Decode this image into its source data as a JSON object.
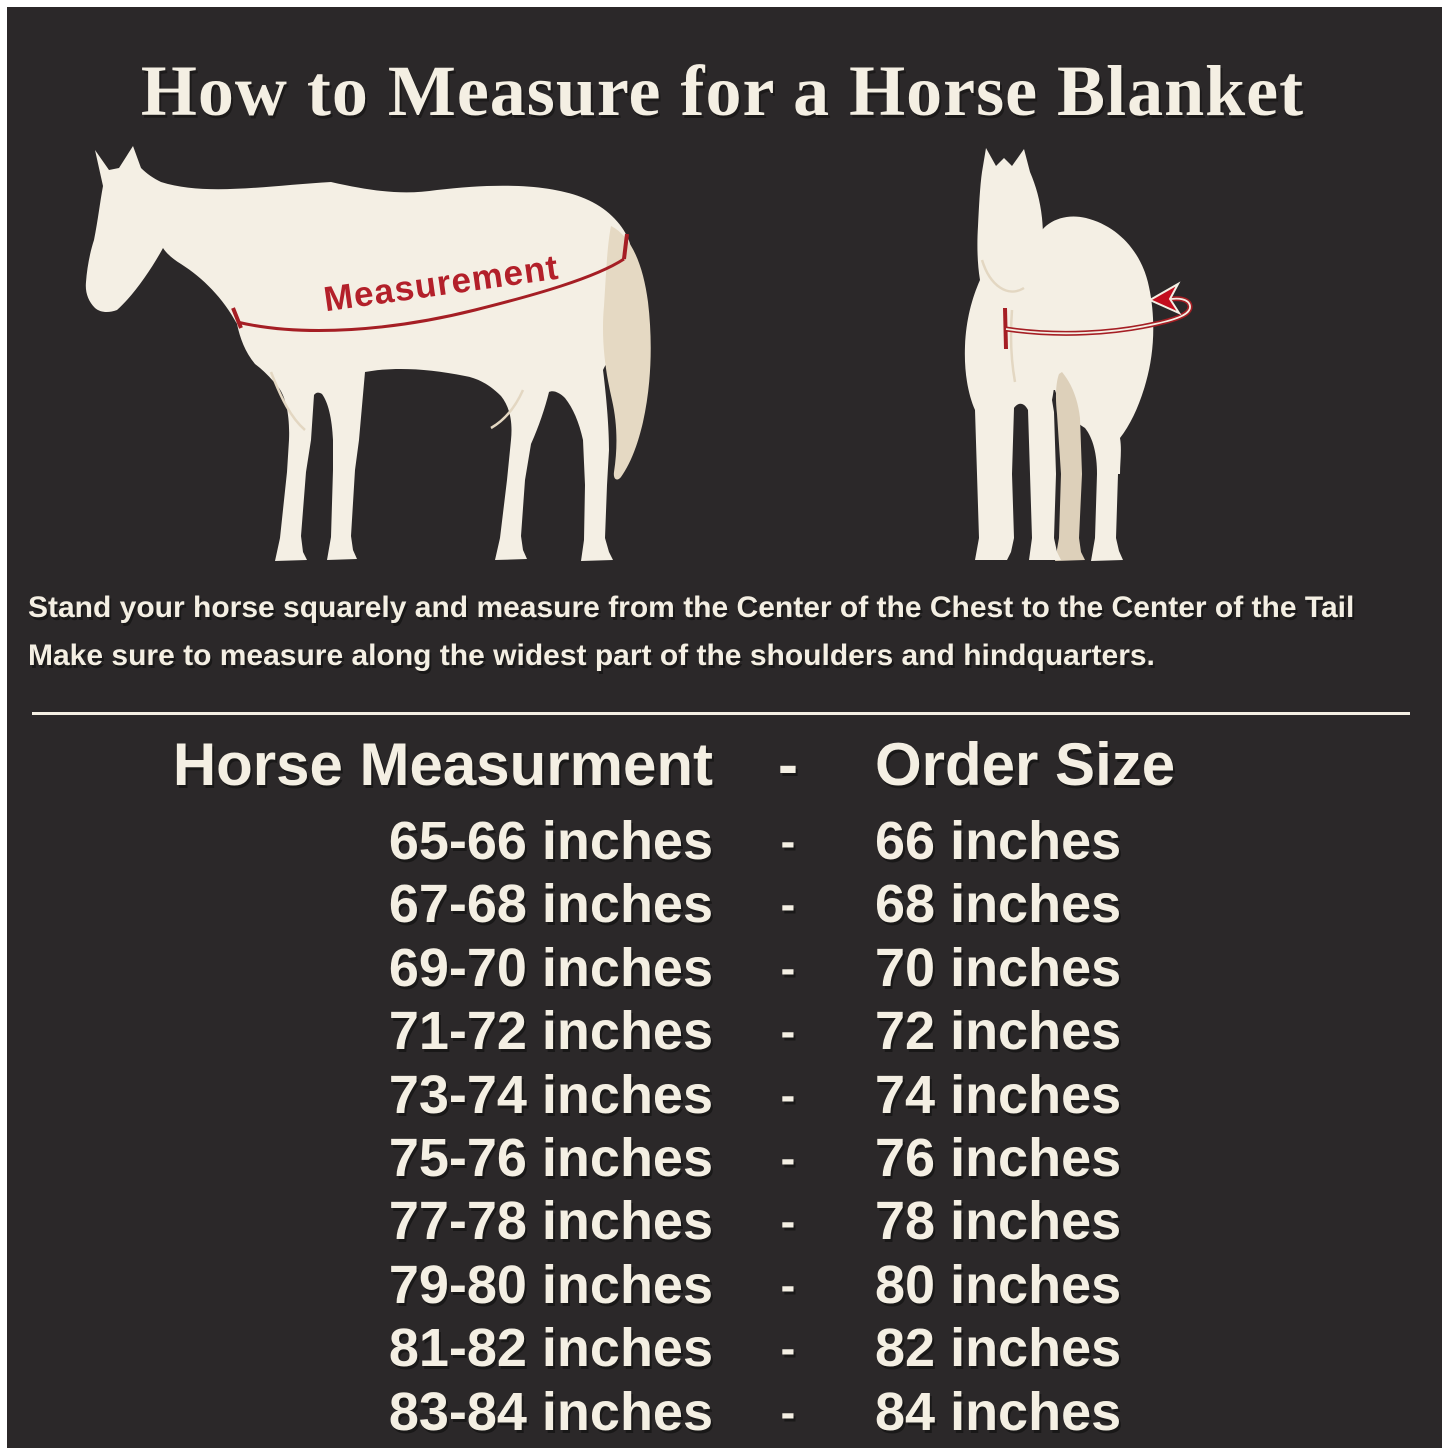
{
  "title": "How to Measure for a Horse Blanket",
  "diagram": {
    "measurement_label": "Measurement",
    "side_horse": "side-view-horse-silhouette",
    "front_horse": "front-view-horse-silhouette"
  },
  "instructions": {
    "line1": "Stand your horse squarely and measure from the Center of the Chest to the Center of the Tail",
    "line2": "Make sure to measure along the widest part of the shoulders and hindquarters."
  },
  "size_table": {
    "header": {
      "measurement": "Horse Measurment",
      "separator": "-",
      "size": "Order Size"
    },
    "rows": [
      {
        "measurement": "65-66 inches",
        "separator": "-",
        "size": "66 inches"
      },
      {
        "measurement": "67-68 inches",
        "separator": "-",
        "size": "68 inches"
      },
      {
        "measurement": "69-70 inches",
        "separator": "-",
        "size": "70 inches"
      },
      {
        "measurement": "71-72 inches",
        "separator": "-",
        "size": "72 inches"
      },
      {
        "measurement": "73-74 inches",
        "separator": "-",
        "size": "74 inches"
      },
      {
        "measurement": "75-76 inches",
        "separator": "-",
        "size": "76 inches"
      },
      {
        "measurement": "77-78 inches",
        "separator": "-",
        "size": "78 inches"
      },
      {
        "measurement": "79-80 inches",
        "separator": "-",
        "size": "80 inches"
      },
      {
        "measurement": "81-82 inches",
        "separator": "-",
        "size": "82 inches"
      },
      {
        "measurement": "83-84 inches",
        "separator": "-",
        "size": "84 inches"
      }
    ]
  },
  "colors": {
    "panel_background": "#2b2829",
    "text_cream": "#f4efe3",
    "horse_cream": "#f4efe4",
    "tail_beige": "#e5d9c3",
    "shade_beige": "#ddd0ba",
    "accent_red": "#b3202a",
    "arrow_red": "#c30d1d"
  }
}
